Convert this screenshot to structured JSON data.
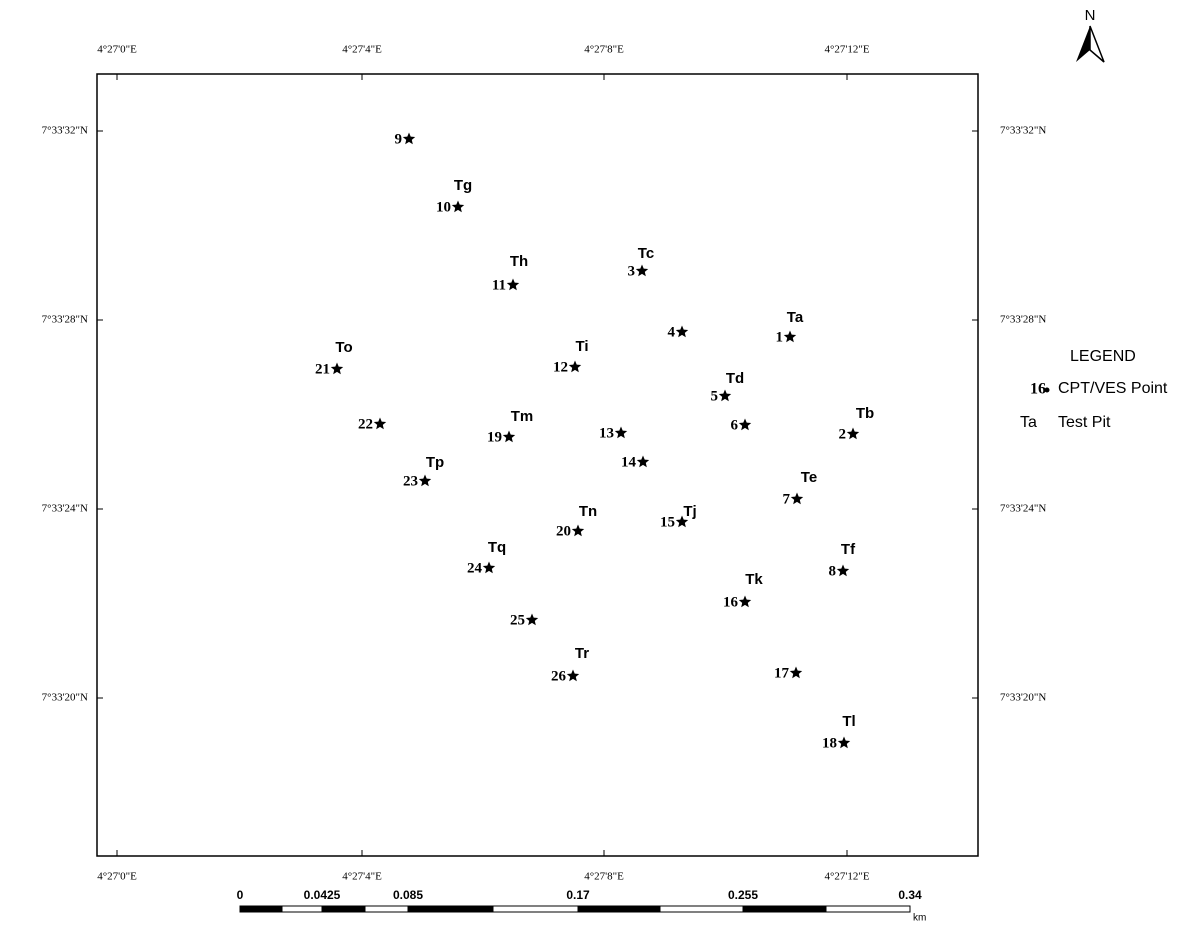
{
  "north": "N",
  "longitude_labels": [
    "4°27'0\"E",
    "4°27'4\"E",
    "4°27'8\"E",
    "4°27'12\"E"
  ],
  "latitude_labels": [
    "7°33'32\"N",
    "7°33'28\"N",
    "7°33'24\"N",
    "7°33'20\"N"
  ],
  "points": [
    "9",
    "10",
    "11",
    "3",
    "4",
    "1",
    "21",
    "12",
    "5",
    "22",
    "19",
    "13",
    "6",
    "2",
    "14",
    "23",
    "7",
    "20",
    "15",
    "24",
    "8",
    "16",
    "25",
    "26",
    "17",
    "18"
  ],
  "test_pits": [
    "Tg",
    "Th",
    "Tc",
    "Ta",
    "To",
    "Ti",
    "Td",
    "Tb",
    "Tm",
    "Tp",
    "Te",
    "Tn",
    "Tj",
    "Tf",
    "Tq",
    "Tk",
    "Tr",
    "Tl"
  ],
  "legend": {
    "title": "LEGEND",
    "items": [
      {
        "symbol": "16",
        "label": "CPT/VES Point"
      },
      {
        "symbol": "Ta",
        "label": "Test Pit"
      }
    ]
  },
  "scale_bar": {
    "labels": [
      "0",
      "0.0425",
      "0.085",
      "0.17",
      "0.255",
      "0.34"
    ],
    "unit": "km"
  }
}
